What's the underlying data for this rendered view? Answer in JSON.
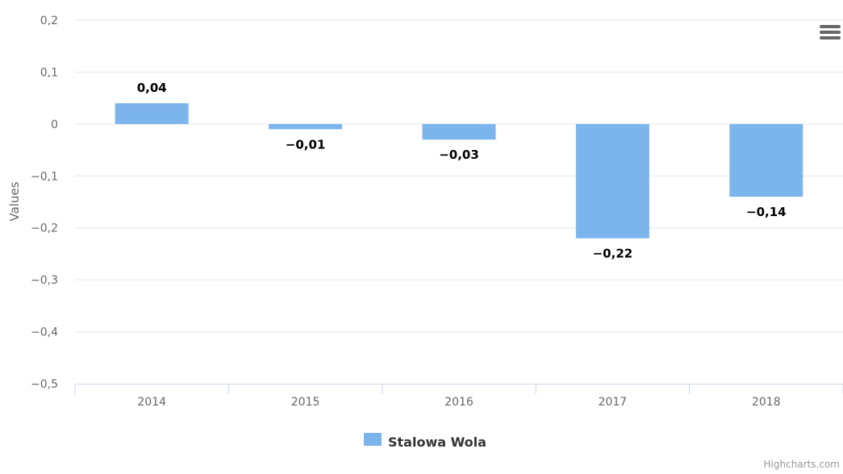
{
  "chart_data": {
    "type": "bar",
    "categories": [
      "2014",
      "2015",
      "2016",
      "2017",
      "2018"
    ],
    "series": [
      {
        "name": "Stalowa Wola",
        "values": [
          0.04,
          -0.01,
          -0.03,
          -0.22,
          -0.14
        ],
        "color": "#7cb5ec"
      }
    ],
    "data_labels": [
      "0,04",
      "−0,01",
      "−0,03",
      "−0,22",
      "−0,14"
    ],
    "y_ticks": [
      0.2,
      0.1,
      0,
      -0.1,
      -0.2,
      -0.3,
      -0.4,
      -0.5
    ],
    "y_tick_labels": [
      "0,2",
      "0,1",
      "0",
      "−0,1",
      "−0,2",
      "−0,3",
      "−0,4",
      "−0,5"
    ],
    "ylim": [
      -0.5,
      0.2
    ],
    "ylabel": "Values",
    "xlabel": "",
    "title": "",
    "grid": true,
    "legend_position": "bottom-center"
  },
  "credits": "Highcharts.com",
  "menu_icon": "hamburger-menu-icon",
  "colors": {
    "grid": "#e6e6e6",
    "axis_line": "#ccd6eb",
    "axis_text": "#666666",
    "label_text": "#000000"
  }
}
